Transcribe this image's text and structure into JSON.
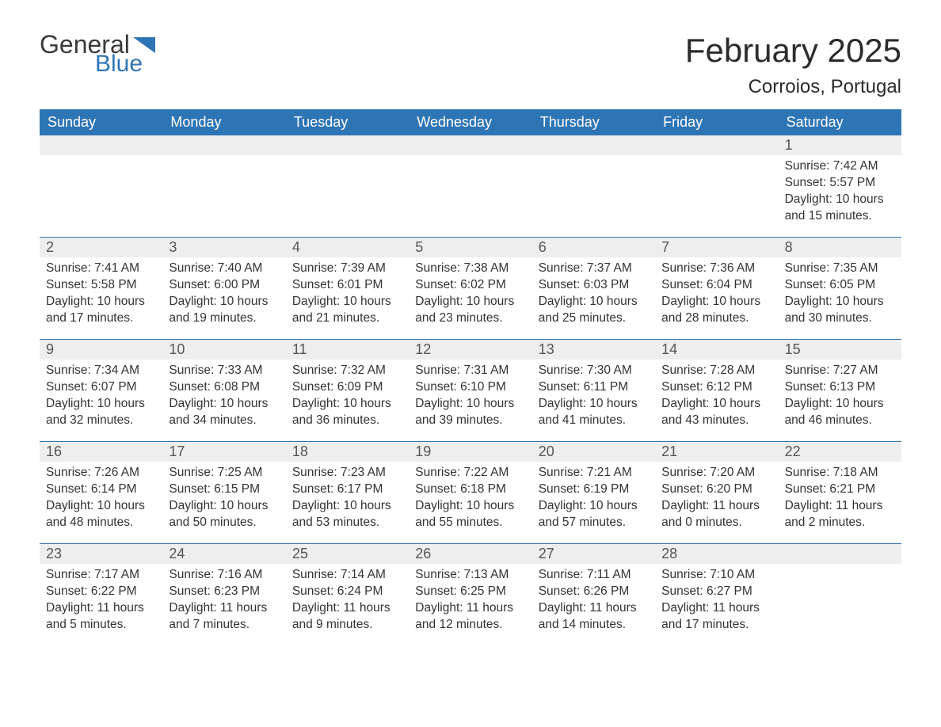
{
  "logo": {
    "text1": "General",
    "text2": "Blue"
  },
  "title": {
    "month": "February 2025",
    "location": "Corroios, Portugal"
  },
  "style": {
    "header_bg": "#2e75b6",
    "header_fg": "#ffffff",
    "daynum_bg": "#eeeeee",
    "daynum_fg": "#555555",
    "body_fg": "#333333",
    "row_border": "#2e75b6",
    "page_bg": "#ffffff",
    "month_title_fontsize": 42,
    "location_fontsize": 24,
    "weekday_fontsize": 18,
    "daynum_fontsize": 18,
    "body_fontsize": 15.5
  },
  "weekdays": [
    "Sunday",
    "Monday",
    "Tuesday",
    "Wednesday",
    "Thursday",
    "Friday",
    "Saturday"
  ],
  "weeks": [
    [
      null,
      null,
      null,
      null,
      null,
      null,
      {
        "d": "1",
        "sr": "Sunrise: 7:42 AM",
        "ss": "Sunset: 5:57 PM",
        "dl1": "Daylight: 10 hours",
        "dl2": "and 15 minutes."
      }
    ],
    [
      {
        "d": "2",
        "sr": "Sunrise: 7:41 AM",
        "ss": "Sunset: 5:58 PM",
        "dl1": "Daylight: 10 hours",
        "dl2": "and 17 minutes."
      },
      {
        "d": "3",
        "sr": "Sunrise: 7:40 AM",
        "ss": "Sunset: 6:00 PM",
        "dl1": "Daylight: 10 hours",
        "dl2": "and 19 minutes."
      },
      {
        "d": "4",
        "sr": "Sunrise: 7:39 AM",
        "ss": "Sunset: 6:01 PM",
        "dl1": "Daylight: 10 hours",
        "dl2": "and 21 minutes."
      },
      {
        "d": "5",
        "sr": "Sunrise: 7:38 AM",
        "ss": "Sunset: 6:02 PM",
        "dl1": "Daylight: 10 hours",
        "dl2": "and 23 minutes."
      },
      {
        "d": "6",
        "sr": "Sunrise: 7:37 AM",
        "ss": "Sunset: 6:03 PM",
        "dl1": "Daylight: 10 hours",
        "dl2": "and 25 minutes."
      },
      {
        "d": "7",
        "sr": "Sunrise: 7:36 AM",
        "ss": "Sunset: 6:04 PM",
        "dl1": "Daylight: 10 hours",
        "dl2": "and 28 minutes."
      },
      {
        "d": "8",
        "sr": "Sunrise: 7:35 AM",
        "ss": "Sunset: 6:05 PM",
        "dl1": "Daylight: 10 hours",
        "dl2": "and 30 minutes."
      }
    ],
    [
      {
        "d": "9",
        "sr": "Sunrise: 7:34 AM",
        "ss": "Sunset: 6:07 PM",
        "dl1": "Daylight: 10 hours",
        "dl2": "and 32 minutes."
      },
      {
        "d": "10",
        "sr": "Sunrise: 7:33 AM",
        "ss": "Sunset: 6:08 PM",
        "dl1": "Daylight: 10 hours",
        "dl2": "and 34 minutes."
      },
      {
        "d": "11",
        "sr": "Sunrise: 7:32 AM",
        "ss": "Sunset: 6:09 PM",
        "dl1": "Daylight: 10 hours",
        "dl2": "and 36 minutes."
      },
      {
        "d": "12",
        "sr": "Sunrise: 7:31 AM",
        "ss": "Sunset: 6:10 PM",
        "dl1": "Daylight: 10 hours",
        "dl2": "and 39 minutes."
      },
      {
        "d": "13",
        "sr": "Sunrise: 7:30 AM",
        "ss": "Sunset: 6:11 PM",
        "dl1": "Daylight: 10 hours",
        "dl2": "and 41 minutes."
      },
      {
        "d": "14",
        "sr": "Sunrise: 7:28 AM",
        "ss": "Sunset: 6:12 PM",
        "dl1": "Daylight: 10 hours",
        "dl2": "and 43 minutes."
      },
      {
        "d": "15",
        "sr": "Sunrise: 7:27 AM",
        "ss": "Sunset: 6:13 PM",
        "dl1": "Daylight: 10 hours",
        "dl2": "and 46 minutes."
      }
    ],
    [
      {
        "d": "16",
        "sr": "Sunrise: 7:26 AM",
        "ss": "Sunset: 6:14 PM",
        "dl1": "Daylight: 10 hours",
        "dl2": "and 48 minutes."
      },
      {
        "d": "17",
        "sr": "Sunrise: 7:25 AM",
        "ss": "Sunset: 6:15 PM",
        "dl1": "Daylight: 10 hours",
        "dl2": "and 50 minutes."
      },
      {
        "d": "18",
        "sr": "Sunrise: 7:23 AM",
        "ss": "Sunset: 6:17 PM",
        "dl1": "Daylight: 10 hours",
        "dl2": "and 53 minutes."
      },
      {
        "d": "19",
        "sr": "Sunrise: 7:22 AM",
        "ss": "Sunset: 6:18 PM",
        "dl1": "Daylight: 10 hours",
        "dl2": "and 55 minutes."
      },
      {
        "d": "20",
        "sr": "Sunrise: 7:21 AM",
        "ss": "Sunset: 6:19 PM",
        "dl1": "Daylight: 10 hours",
        "dl2": "and 57 minutes."
      },
      {
        "d": "21",
        "sr": "Sunrise: 7:20 AM",
        "ss": "Sunset: 6:20 PM",
        "dl1": "Daylight: 11 hours",
        "dl2": "and 0 minutes."
      },
      {
        "d": "22",
        "sr": "Sunrise: 7:18 AM",
        "ss": "Sunset: 6:21 PM",
        "dl1": "Daylight: 11 hours",
        "dl2": "and 2 minutes."
      }
    ],
    [
      {
        "d": "23",
        "sr": "Sunrise: 7:17 AM",
        "ss": "Sunset: 6:22 PM",
        "dl1": "Daylight: 11 hours",
        "dl2": "and 5 minutes."
      },
      {
        "d": "24",
        "sr": "Sunrise: 7:16 AM",
        "ss": "Sunset: 6:23 PM",
        "dl1": "Daylight: 11 hours",
        "dl2": "and 7 minutes."
      },
      {
        "d": "25",
        "sr": "Sunrise: 7:14 AM",
        "ss": "Sunset: 6:24 PM",
        "dl1": "Daylight: 11 hours",
        "dl2": "and 9 minutes."
      },
      {
        "d": "26",
        "sr": "Sunrise: 7:13 AM",
        "ss": "Sunset: 6:25 PM",
        "dl1": "Daylight: 11 hours",
        "dl2": "and 12 minutes."
      },
      {
        "d": "27",
        "sr": "Sunrise: 7:11 AM",
        "ss": "Sunset: 6:26 PM",
        "dl1": "Daylight: 11 hours",
        "dl2": "and 14 minutes."
      },
      {
        "d": "28",
        "sr": "Sunrise: 7:10 AM",
        "ss": "Sunset: 6:27 PM",
        "dl1": "Daylight: 11 hours",
        "dl2": "and 17 minutes."
      },
      null
    ]
  ]
}
